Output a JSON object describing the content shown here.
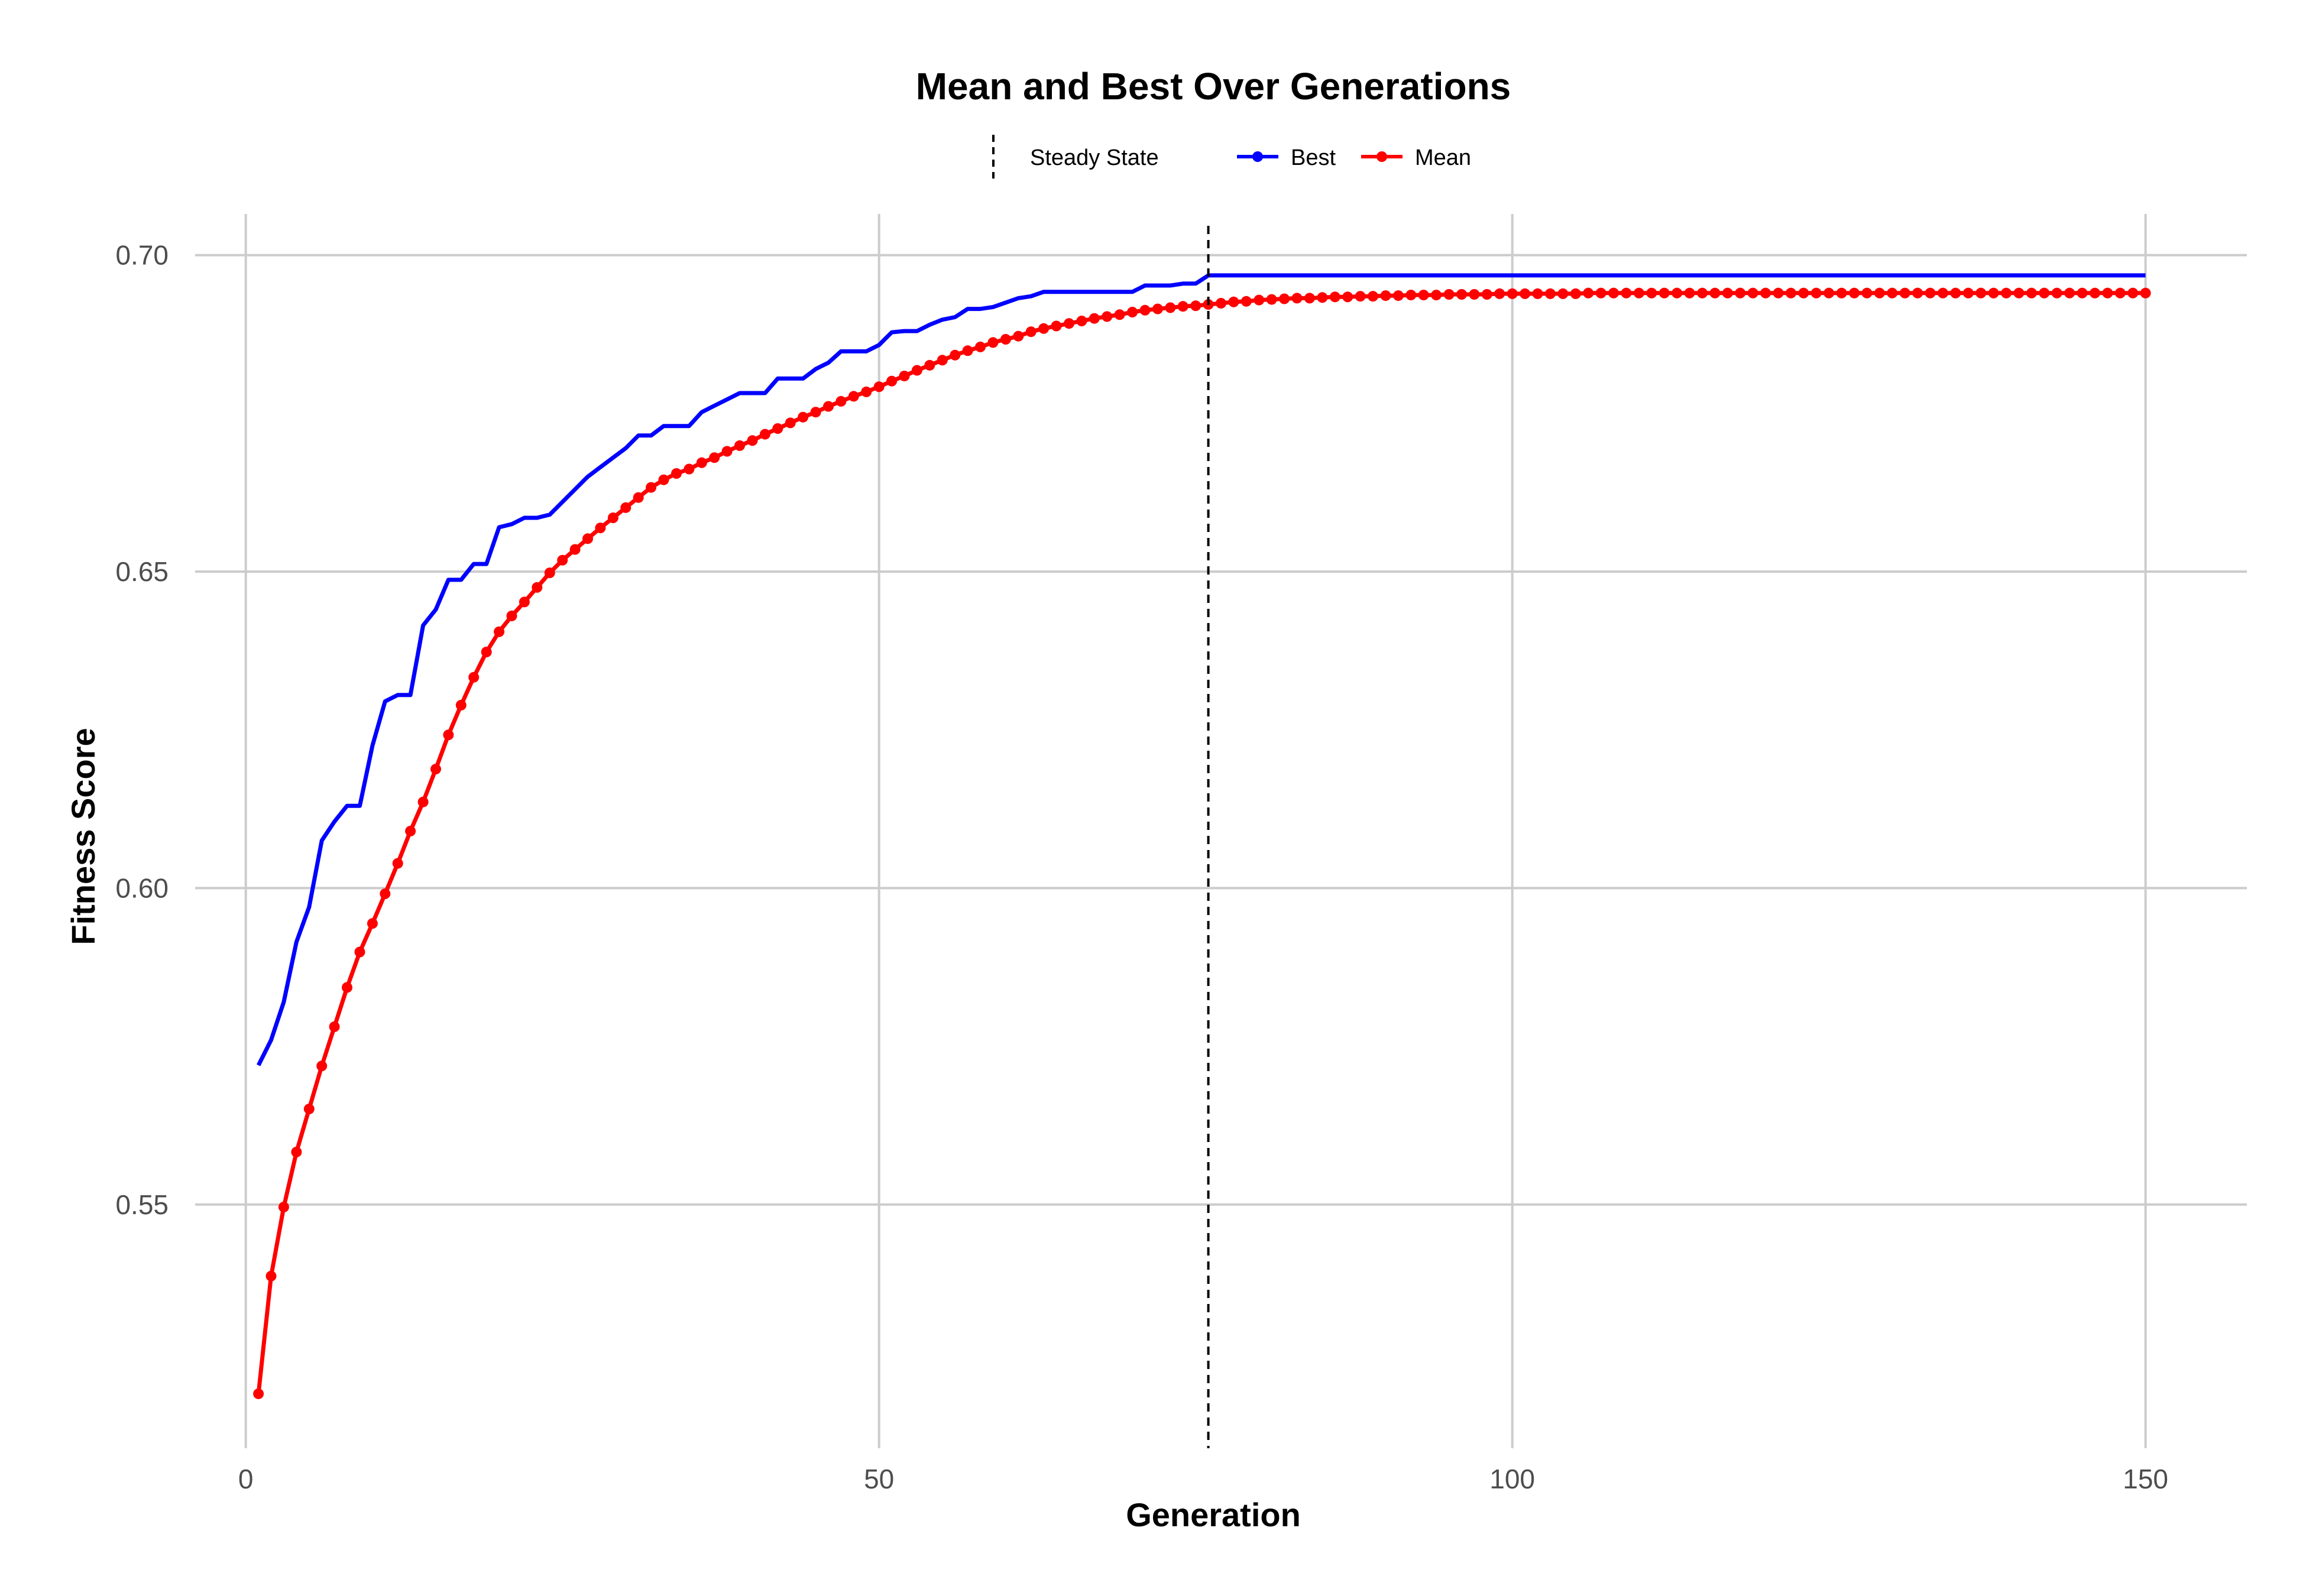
{
  "chart_data": {
    "type": "line",
    "title": "Mean and Best Over Generations",
    "xlabel": "Generation",
    "ylabel": "Fitness Score",
    "xlim": [
      -4,
      158
    ],
    "ylim": [
      0.5115,
      0.7065
    ],
    "x_ticks": [
      0,
      50,
      100,
      150
    ],
    "x_tick_labels": [
      "0",
      "50",
      "100",
      "150"
    ],
    "y_ticks": [
      0.55,
      0.6,
      0.65,
      0.7
    ],
    "y_tick_labels": [
      "0.55",
      "0.60",
      "0.65",
      "0.70"
    ],
    "grid": true,
    "legend_position": "top",
    "steady_state": {
      "label": "Steady State",
      "x": 76,
      "color": "#000000",
      "style": "dashed"
    },
    "series": [
      {
        "name": "Best",
        "color": "#0000ff",
        "markers": false,
        "x_start": 1,
        "values": [
          0.572,
          0.576,
          0.582,
          0.5915,
          0.597,
          0.6075,
          0.6105,
          0.613,
          0.613,
          0.6225,
          0.6295,
          0.6305,
          0.6305,
          0.6415,
          0.644,
          0.6487,
          0.6487,
          0.6512,
          0.6512,
          0.657,
          0.6575,
          0.6585,
          0.6585,
          0.659,
          0.661,
          0.663,
          0.665,
          0.6665,
          0.668,
          0.6695,
          0.6715,
          0.6715,
          0.673,
          0.673,
          0.673,
          0.6752,
          0.6762,
          0.6772,
          0.6782,
          0.6782,
          0.6782,
          0.6805,
          0.6805,
          0.6805,
          0.682,
          0.683,
          0.6848,
          0.6848,
          0.6848,
          0.6858,
          0.6878,
          0.688,
          0.688,
          0.689,
          0.6898,
          0.6902,
          0.6915,
          0.6915,
          0.6918,
          0.6925,
          0.6932,
          0.6935,
          0.6942,
          0.6942,
          0.6942,
          0.6942,
          0.6942,
          0.6942,
          0.6942,
          0.6942,
          0.6952,
          0.6952,
          0.6952,
          0.6955,
          0.6955,
          0.6968,
          0.6968,
          0.6968,
          0.6968,
          0.6968,
          0.6968,
          0.6968,
          0.6968,
          0.6968,
          0.6968,
          0.6968,
          0.6968,
          0.6968,
          0.6968,
          0.6968,
          0.6968,
          0.6968,
          0.6968,
          0.6968,
          0.6968,
          0.6968,
          0.6968,
          0.6968,
          0.6968,
          0.6968,
          0.6968,
          0.6968,
          0.6968,
          0.6968,
          0.6968,
          0.6968,
          0.6968,
          0.6968,
          0.6968,
          0.6968,
          0.6968,
          0.6968,
          0.6968,
          0.6968,
          0.6968,
          0.6968,
          0.6968,
          0.6968,
          0.6968,
          0.6968,
          0.6968,
          0.6968,
          0.6968,
          0.6968,
          0.6968,
          0.6968,
          0.6968,
          0.6968,
          0.6968,
          0.6968,
          0.6968,
          0.6968,
          0.6968,
          0.6968,
          0.6968,
          0.6968,
          0.6968,
          0.6968,
          0.6968,
          0.6968,
          0.6968,
          0.6968,
          0.6968,
          0.6968,
          0.6968,
          0.6968,
          0.6968,
          0.6968,
          0.6968,
          0.6968
        ]
      },
      {
        "name": "Mean",
        "color": "#ff0000",
        "markers": true,
        "x_start": 1,
        "values": [
          0.5201,
          0.5387,
          0.5496,
          0.5583,
          0.5651,
          0.5719,
          0.5781,
          0.5843,
          0.5899,
          0.5944,
          0.5991,
          0.6039,
          0.609,
          0.6136,
          0.6188,
          0.6242,
          0.6289,
          0.6333,
          0.6373,
          0.6405,
          0.643,
          0.6452,
          0.6475,
          0.6498,
          0.6518,
          0.6535,
          0.6552,
          0.6569,
          0.6585,
          0.6601,
          0.6617,
          0.6633,
          0.6645,
          0.6655,
          0.6662,
          0.6672,
          0.668,
          0.669,
          0.6699,
          0.6707,
          0.6717,
          0.6726,
          0.6735,
          0.6744,
          0.6752,
          0.6761,
          0.6769,
          0.6777,
          0.6784,
          0.6792,
          0.6801,
          0.6809,
          0.6818,
          0.6826,
          0.6834,
          0.6842,
          0.6849,
          0.6855,
          0.6862,
          0.6867,
          0.6872,
          0.6879,
          0.6884,
          0.6888,
          0.6892,
          0.6896,
          0.69,
          0.6903,
          0.6906,
          0.691,
          0.6913,
          0.6915,
          0.6917,
          0.6919,
          0.692,
          0.6922,
          0.6924,
          0.6926,
          0.6927,
          0.6929,
          0.693,
          0.6931,
          0.6932,
          0.6932,
          0.6933,
          0.6934,
          0.6934,
          0.6935,
          0.6935,
          0.6936,
          0.6936,
          0.6937,
          0.6937,
          0.6937,
          0.6938,
          0.6938,
          0.6938,
          0.6938,
          0.6939,
          0.6939,
          0.6939,
          0.6939,
          0.6939,
          0.6939,
          0.6939,
          0.694,
          0.694,
          0.694,
          0.694,
          0.694,
          0.694,
          0.694,
          0.694,
          0.694,
          0.694,
          0.694,
          0.694,
          0.694,
          0.694,
          0.694,
          0.694,
          0.694,
          0.694,
          0.694,
          0.694,
          0.694,
          0.694,
          0.694,
          0.694,
          0.694,
          0.694,
          0.694,
          0.694,
          0.694,
          0.694,
          0.694,
          0.694,
          0.694,
          0.694,
          0.694,
          0.694,
          0.694,
          0.694,
          0.694,
          0.694,
          0.694,
          0.694,
          0.694,
          0.694,
          0.694
        ]
      }
    ]
  }
}
